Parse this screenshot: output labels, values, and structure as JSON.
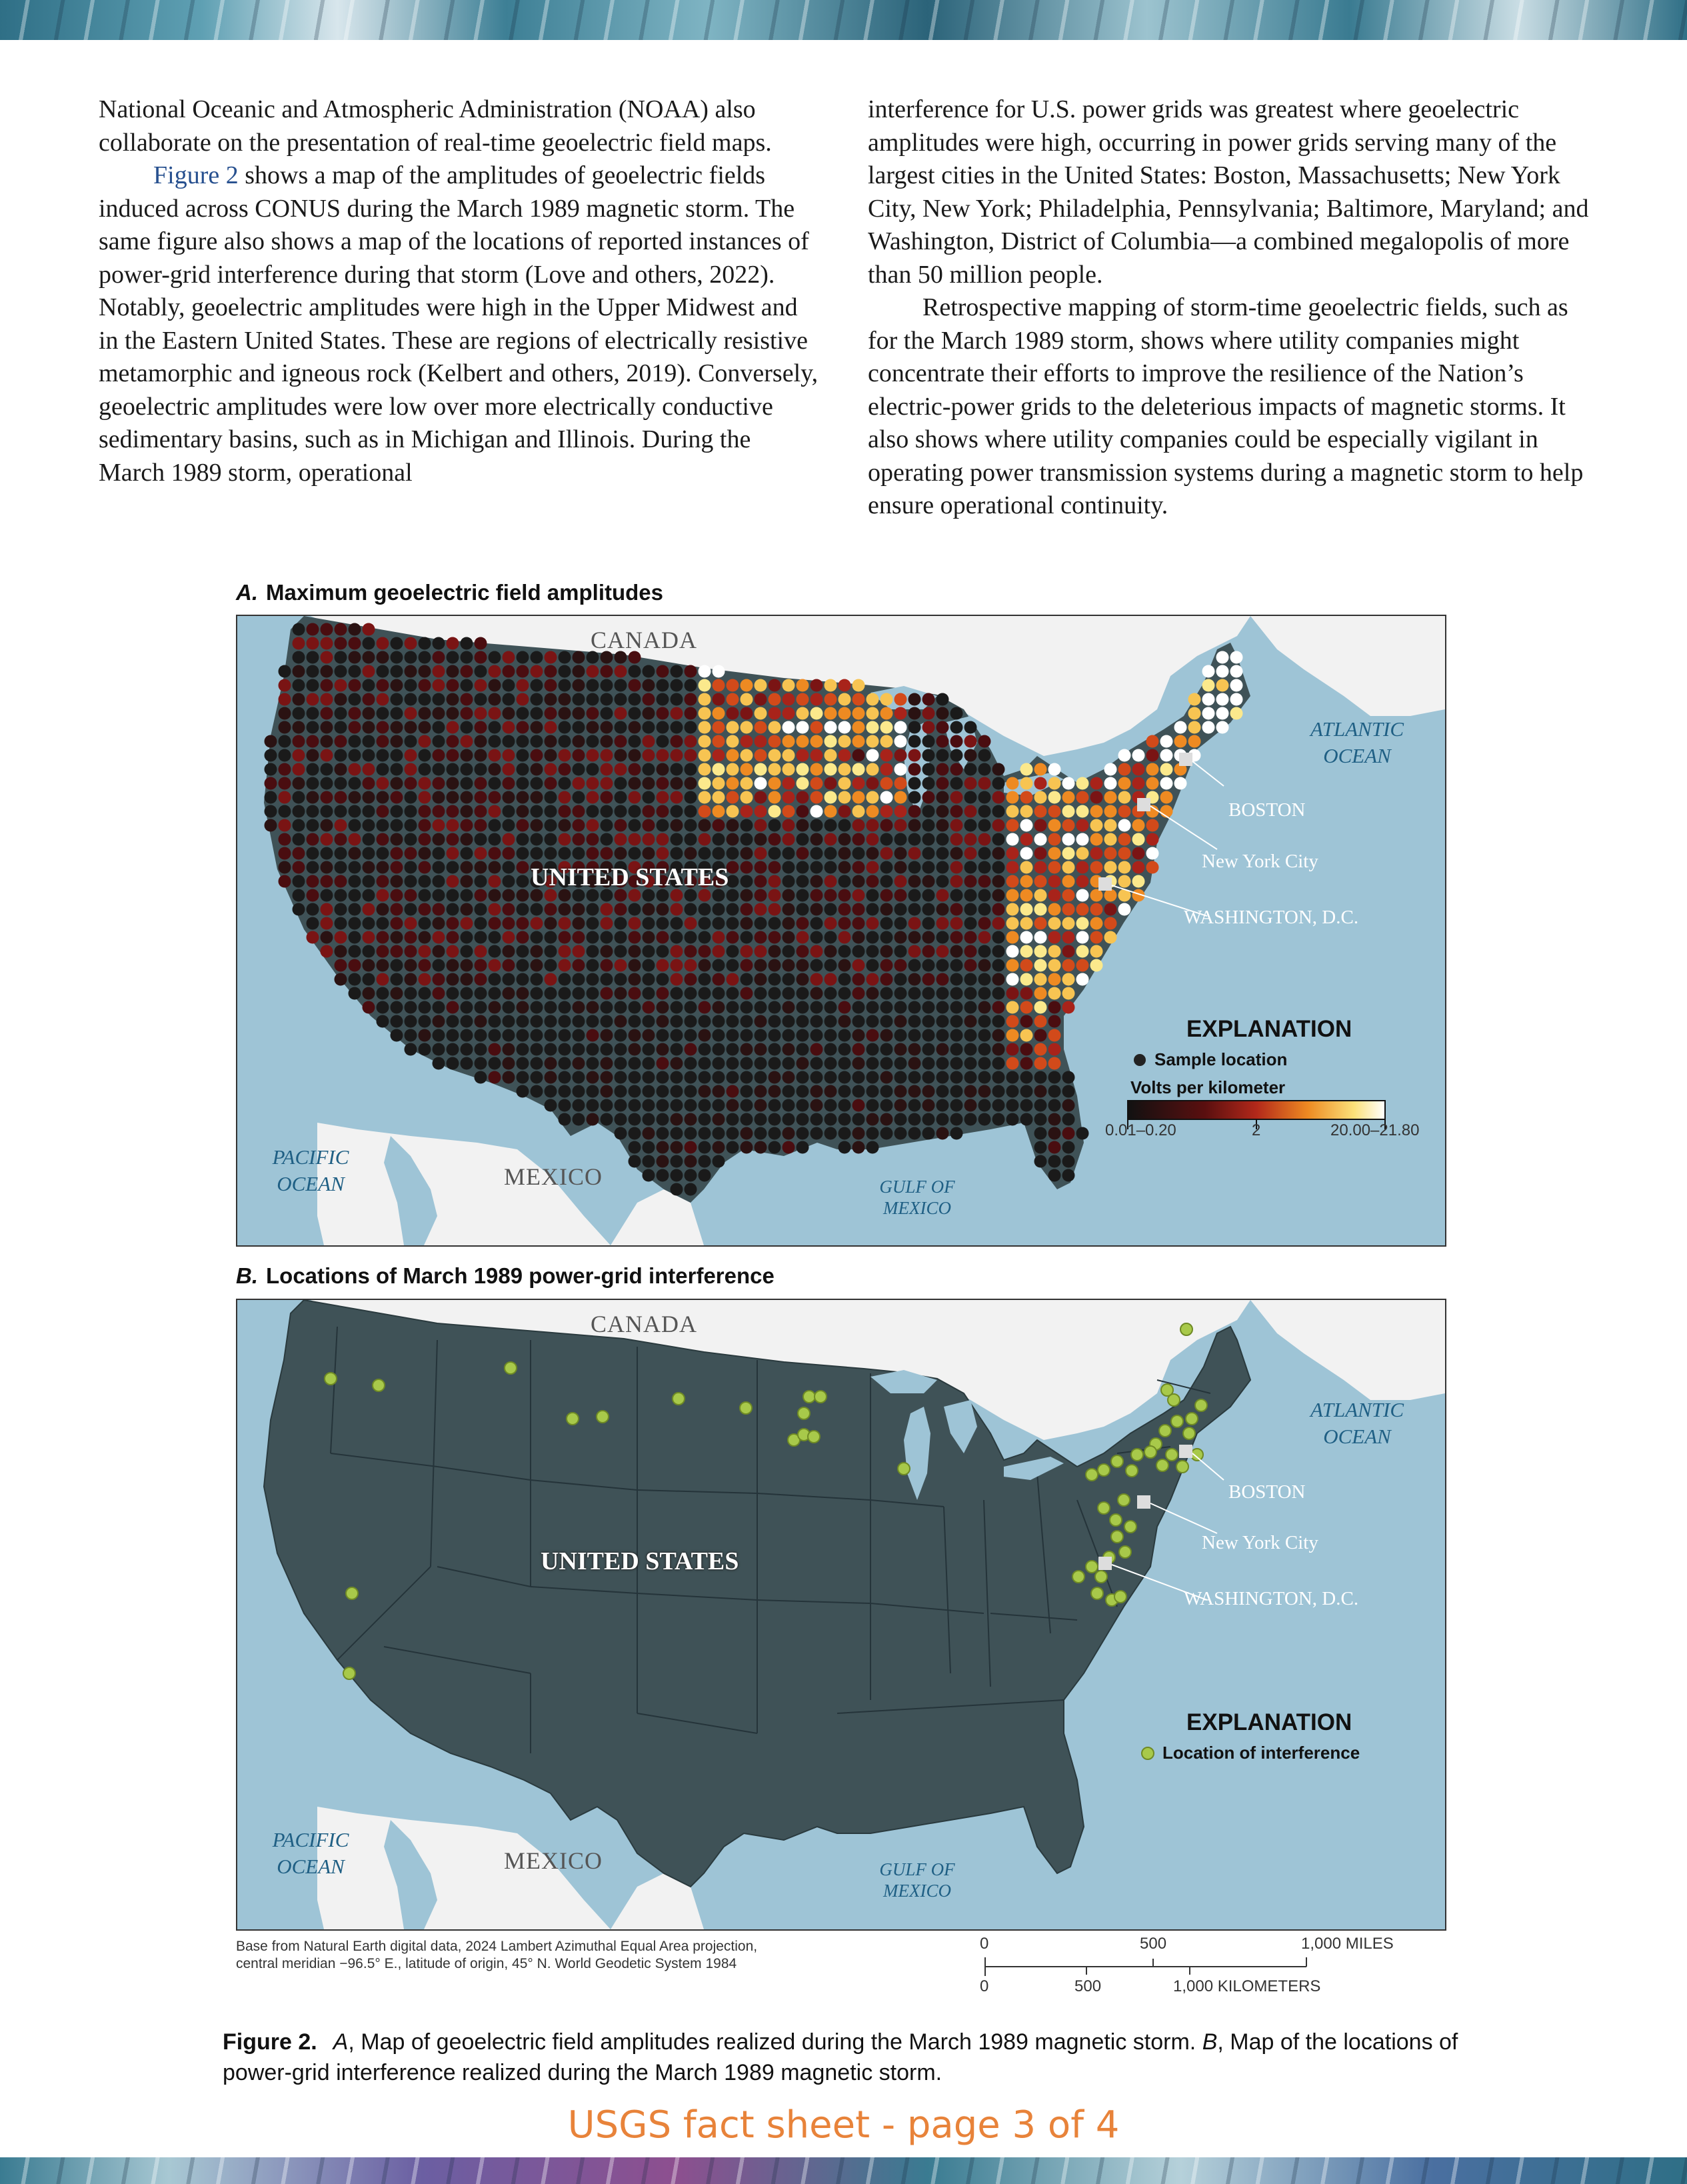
{
  "page": {
    "left_column": [
      "National Oceanic and Atmospheric Administration (NOAA) also collaborate on the presentation of real-time geoelectric field maps.",
      " shows a map of the amplitudes of geoelectric fields induced across CONUS during the March 1989 magnetic storm. The same figure also shows a map of the locations of reported instances of power-grid interference during that storm (Love and others, 2022). Notably, geoelectric amplitudes were high in the Upper Midwest and in the Eastern United States. These are regions of electrically resistive metamorphic and igneous rock (Kelbert and others, 2019). Conversely, geoelectric amplitudes were low over more electrically conductive sedimentary basins, such as in Michigan and Illinois. During the March 1989 storm, operational"
    ],
    "figure_link": "Figure 2",
    "right_column": [
      "interference for U.S. power grids was greatest where geoelectric amplitudes were high, occurring in power grids serving many of the largest cities in the United States: Boston, Massachusetts; New York City, New York; Philadelphia, Pennsylvania; Baltimore, Maryland; and Washington, District of Columbia—a combined megalopolis of more than 50 million people.",
      "Retrospective mapping of storm-time geoelectric fields, such as for the March 1989 storm, shows where utility companies might concentrate their efforts to improve the resilience of the Nation’s electric-power grids to the deleterious impacts of magnetic storms. It also shows where utility companies could be especially vigilant in operating power transmission systems during a magnetic storm to help ensure operational continuity."
    ]
  },
  "panel_a": {
    "letter": "A.",
    "title": "Maximum geoelectric field amplitudes",
    "labels": {
      "canada": "CANADA",
      "united_states": "UNITED STATES",
      "mexico": "MEXICO",
      "atlantic": "ATLANTIC OCEAN",
      "pacific": "PACIFIC OCEAN",
      "gulf": "GULF OF MEXICO",
      "boston": "BOSTON",
      "nyc": "New York City",
      "dc": "WASHINGTON, D.C."
    },
    "explanation": {
      "title": "EXPLANATION",
      "sample": "Sample location",
      "scale_title": "Volts per kilometer",
      "tick_low": "0.01–0.20",
      "tick_mid": "2",
      "tick_high": "20.00–21.80"
    }
  },
  "panel_b": {
    "letter": "B.",
    "title": "Locations of March 1989 power-grid interference",
    "labels": {
      "canada": "CANADA",
      "united_states": "UNITED STATES",
      "mexico": "MEXICO",
      "atlantic": "ATLANTIC OCEAN",
      "pacific": "PACIFIC OCEAN",
      "gulf": "GULF OF MEXICO",
      "boston": "BOSTON",
      "nyc": "New York City",
      "dc": "WASHINGTON, D.C."
    },
    "explanation": {
      "title": "EXPLANATION",
      "item": "Location of interference"
    }
  },
  "base_note": "Base from Natural Earth digital data, 2024 Lambert Azimuthal Equal Area projection, central meridian −96.5° E., latitude of origin, 45° N. World Geodetic System 1984",
  "scale_bar": {
    "miles_0": "0",
    "miles_500": "500",
    "miles_1000": "1,000 MILES",
    "km_0": "0",
    "km_500": "500",
    "km_1000": "1,000 KILOMETERS"
  },
  "caption": {
    "label": "Figure 2.",
    "text_a_letter": "A",
    "text_a": ", Map of geoelectric field amplitudes realized during the March 1989 magnetic storm. ",
    "text_b_letter": "B",
    "text_b": ", Map of the locations of power-grid interference realized during the March 1989 magnetic storm."
  },
  "footer": "USGS fact sheet - page 3 of 4",
  "colors": {
    "land_us": "#3f5257",
    "land_other": "#f2f2f2",
    "water": "#9ec4d6",
    "interference_dot": "#a8c94a",
    "footer": "#e8833a"
  }
}
